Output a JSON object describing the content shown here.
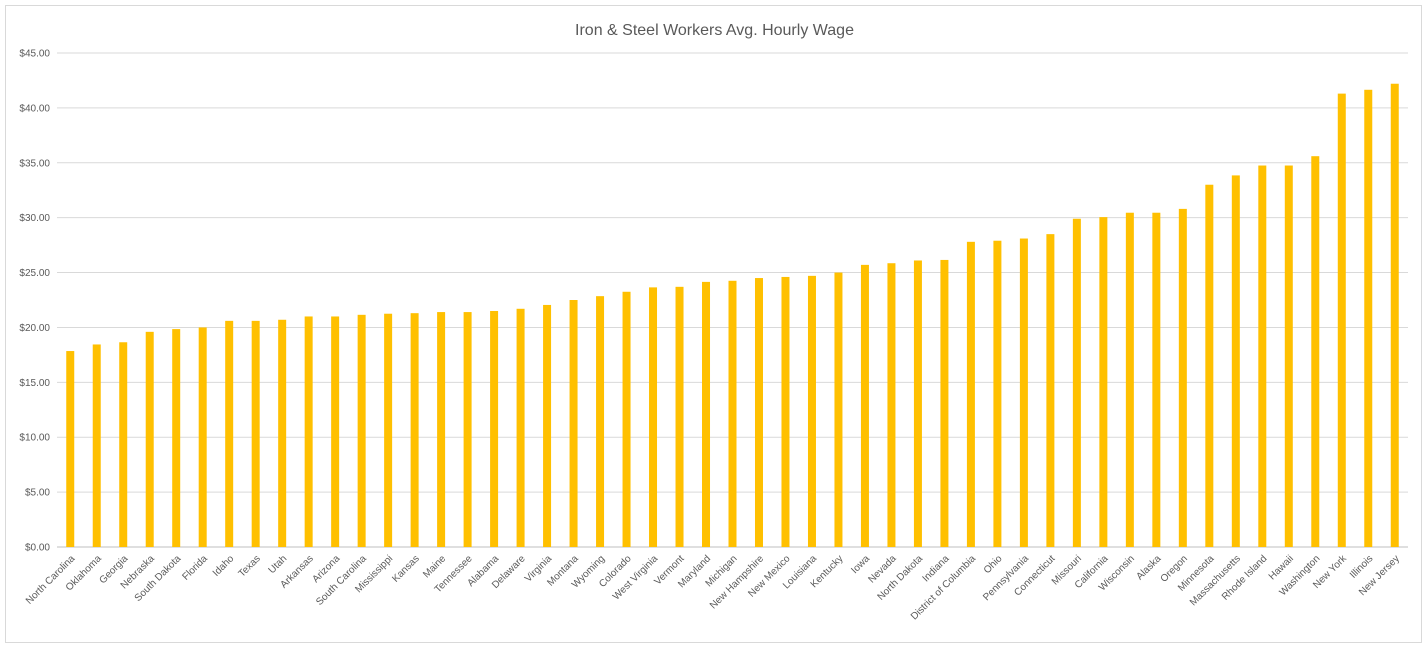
{
  "chart_data": {
    "type": "bar",
    "title": "Iron & Steel Workers Avg. Hourly Wage",
    "xlabel": "",
    "ylabel": "",
    "ylim": [
      0,
      45
    ],
    "ytick_step": 5,
    "ytick_labels": [
      "$0.00",
      "$5.00",
      "$10.00",
      "$15.00",
      "$20.00",
      "$25.00",
      "$30.00",
      "$35.00",
      "$40.00",
      "$45.00"
    ],
    "grid": true,
    "legend": "none",
    "bar_color": "#FFC000",
    "categories": [
      "North Carolina",
      "Oklahoma",
      "Georgia",
      "Nebraska",
      "South Dakota",
      "Florida",
      "Idaho",
      "Texas",
      "Utah",
      "Arkansas",
      "Arizona",
      "South Carolina",
      "Mississippi",
      "Kansas",
      "Maine",
      "Tennessee",
      "Alabama",
      "Delaware",
      "Virginia",
      "Montana",
      "Wyoming",
      "Colorado",
      "West Virginia",
      "Vermont",
      "Maryland",
      "Michigan",
      "New Hampshire",
      "New Mexico",
      "Louisiana",
      "Kentucky",
      "Iowa",
      "Nevada",
      "North Dakota",
      "Indiana",
      "District of Columbia",
      "Ohio",
      "Pennsylvania",
      "Connecticut",
      "Missouri",
      "California",
      "Wisconsin",
      "Alaska",
      "Oregon",
      "Minnesota",
      "Massachusetts",
      "Rhode Island",
      "Hawaii",
      "Washington",
      "New York",
      "Illinois",
      "New Jersey"
    ],
    "values": [
      17.85,
      18.45,
      18.65,
      19.6,
      19.85,
      20.0,
      20.6,
      20.6,
      20.7,
      21.0,
      21.0,
      21.15,
      21.25,
      21.3,
      21.4,
      21.4,
      21.5,
      21.7,
      22.05,
      22.5,
      22.85,
      23.25,
      23.65,
      23.7,
      24.15,
      24.25,
      24.5,
      24.6,
      24.7,
      25.0,
      25.7,
      25.85,
      26.1,
      26.15,
      27.8,
      27.9,
      28.1,
      28.5,
      29.9,
      30.05,
      30.45,
      30.45,
      30.8,
      33.0,
      33.85,
      34.75,
      34.75,
      35.6,
      41.3,
      41.65,
      42.2
    ]
  }
}
